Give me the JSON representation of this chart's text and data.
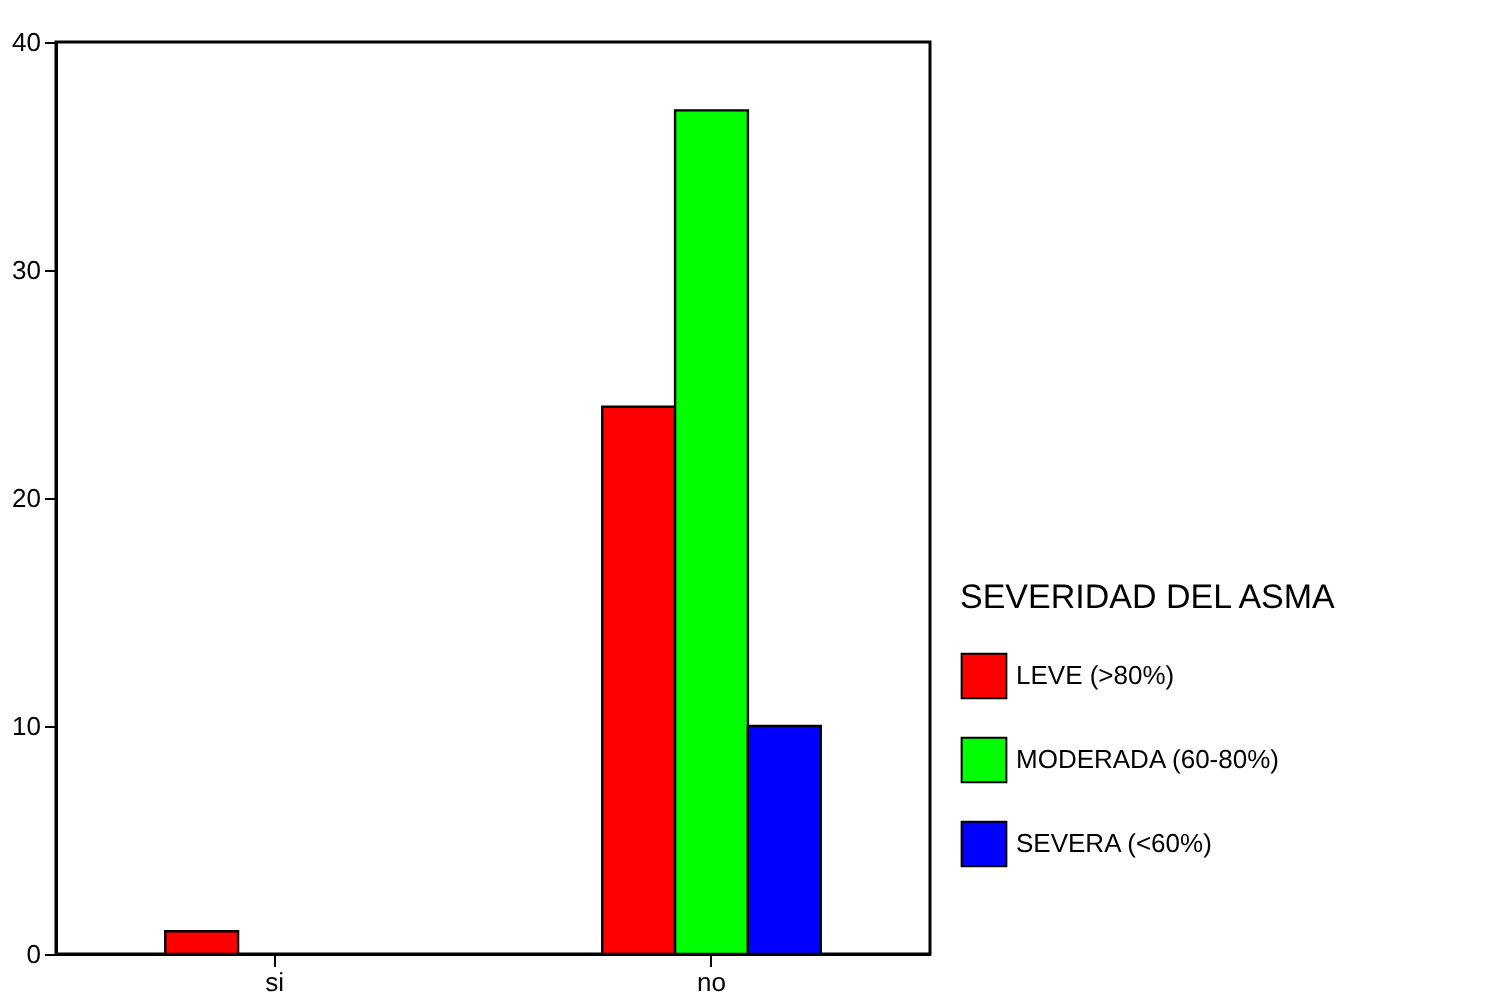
{
  "chart_data": {
    "type": "bar",
    "categories": [
      "si",
      "no"
    ],
    "series": [
      {
        "name": "LEVE (>80%)",
        "color": "#ff0000",
        "values": [
          1,
          24
        ]
      },
      {
        "name": "MODERADA (60-80%)",
        "color": "#00ff00",
        "values": [
          null,
          37
        ]
      },
      {
        "name": "SEVERA (<60%)",
        "color": "#0000ff",
        "values": [
          null,
          10
        ]
      }
    ],
    "legend_title": "SEVERIDAD DEL ASMA",
    "legend": "right",
    "ylim": [
      0,
      40
    ],
    "yticks": [
      0,
      10,
      20,
      30,
      40
    ],
    "grid": false
  }
}
